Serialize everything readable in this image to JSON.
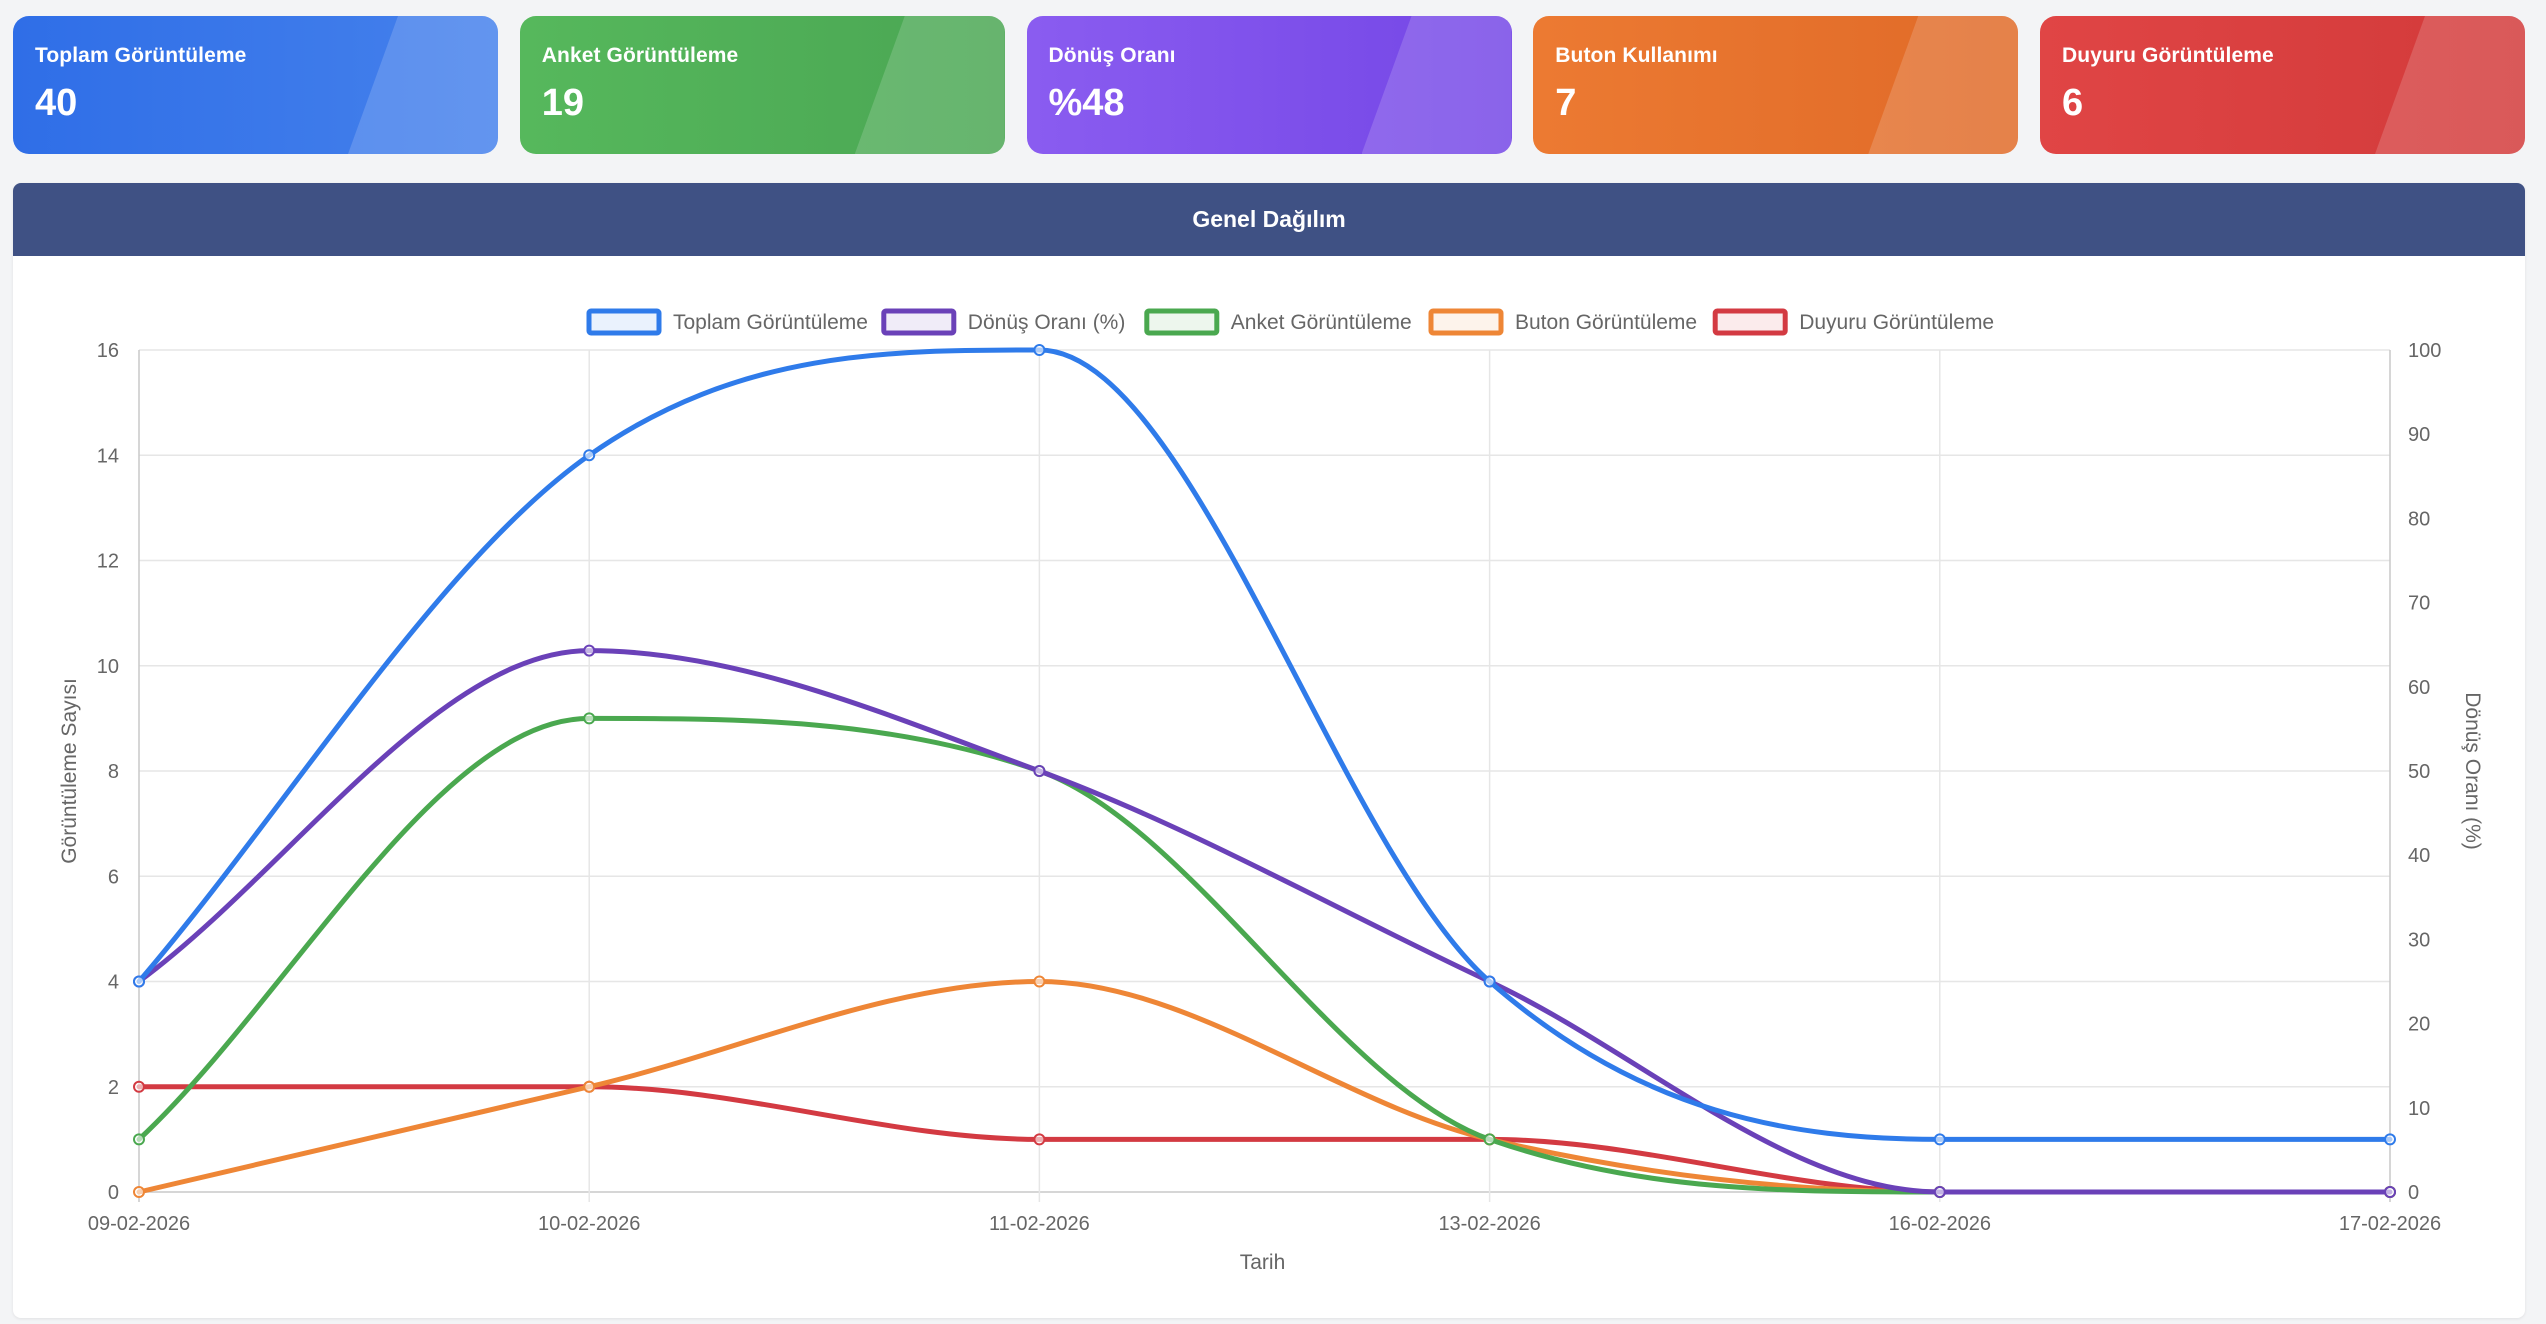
{
  "cards": [
    {
      "label": "Toplam Görüntüleme",
      "value": "40",
      "color_start": "#2f6ee7",
      "color_end": "#4581ec"
    },
    {
      "label": "Anket Görüntüleme",
      "value": "19",
      "color_start": "#56b85c",
      "color_end": "#4aa653"
    },
    {
      "label": "Dönüş Oranı",
      "value": "%48",
      "color_start": "#8a5cf0",
      "color_end": "#7446e6"
    },
    {
      "label": "Buton Kullanımı",
      "value": "7",
      "color_start": "#ec7a32",
      "color_end": "#e06a28"
    },
    {
      "label": "Duyuru Görüntüleme",
      "value": "6",
      "color_start": "#e04545",
      "color_end": "#d23a3a"
    }
  ],
  "panel": {
    "title": "Genel Dağılım"
  },
  "chart_data": {
    "type": "line",
    "x": [
      "09-02-2026",
      "10-02-2026",
      "11-02-2026",
      "13-02-2026",
      "16-02-2026",
      "17-02-2026"
    ],
    "xlabel": "Tarih",
    "ylabel": "Görüntüleme Sayısı",
    "y2label": "Dönüş Oranı (%)",
    "ylim": [
      0,
      16
    ],
    "y2lim": [
      0,
      100
    ],
    "yticks": [
      0,
      2,
      4,
      6,
      8,
      10,
      12,
      14,
      16
    ],
    "y2ticks": [
      0,
      10,
      20,
      30,
      40,
      50,
      60,
      70,
      80,
      90,
      100
    ],
    "grid": true,
    "legend_position": "top",
    "series": [
      {
        "name": "Toplam Görüntüleme",
        "axis": "left",
        "color": "#2f7bea",
        "values": [
          4,
          14,
          16,
          4,
          1,
          1
        ]
      },
      {
        "name": "Dönüş Oranı (%)",
        "axis": "right",
        "color": "#6a41b8",
        "values": [
          25,
          64.3,
          50,
          25,
          0,
          0
        ]
      },
      {
        "name": "Anket Görüntüleme",
        "axis": "left",
        "color": "#4aa84f",
        "values": [
          1,
          9,
          8,
          1,
          0,
          0
        ]
      },
      {
        "name": "Buton Görüntüleme",
        "axis": "left",
        "color": "#ee8636",
        "values": [
          0,
          2,
          4,
          1,
          0,
          0
        ]
      },
      {
        "name": "Duyuru Görüntüleme",
        "axis": "left",
        "color": "#d33a42",
        "values": [
          2,
          2,
          1,
          1,
          0,
          0
        ]
      }
    ]
  }
}
